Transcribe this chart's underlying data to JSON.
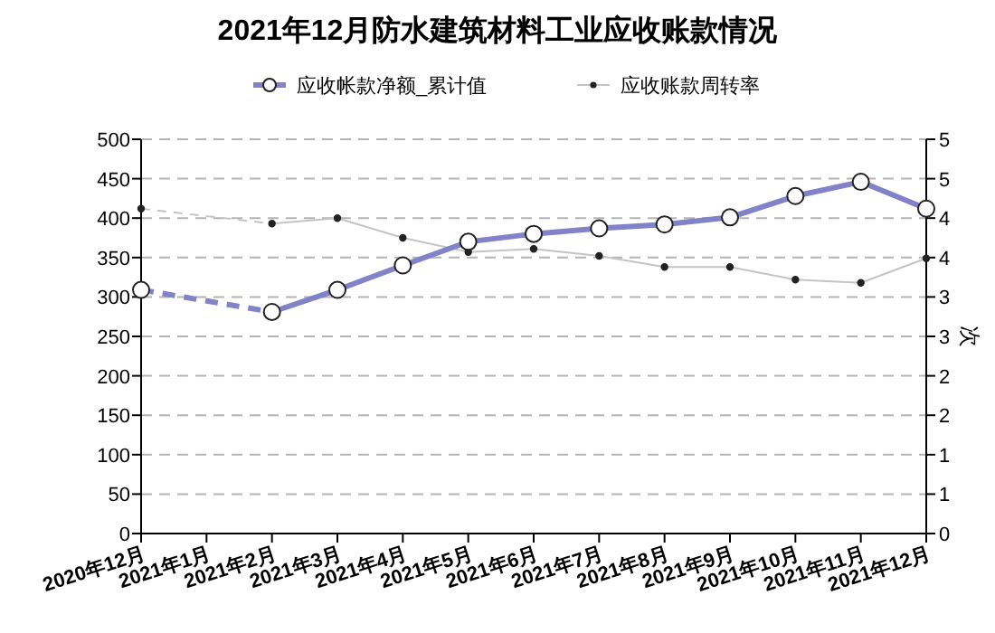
{
  "chart_data": {
    "type": "line",
    "title": "2021年12月防水建筑材料工业应收账款情况",
    "y2label": "次",
    "categories": [
      "2020年12月",
      "2021年1月",
      "2021年2月",
      "2021年3月",
      "2021年4月",
      "2021年5月",
      "2021年6月",
      "2021年7月",
      "2021年8月",
      "2021年9月",
      "2021年10月",
      "2021年11月",
      "2021年12月"
    ],
    "series": [
      {
        "name": "应收帐款净额_累计值",
        "color": "#8282c8",
        "marker": "circle",
        "values": [
          309,
          null,
          281,
          309,
          340,
          370,
          380,
          387,
          392,
          401,
          428,
          446,
          412
        ]
      },
      {
        "name": "应收账款周转率",
        "color": "#c4c4c4",
        "marker": "circle",
        "axis": "y2",
        "values": [
          4.12,
          null,
          3.93,
          4.0,
          3.75,
          3.57,
          3.61,
          3.52,
          3.38,
          3.38,
          3.22,
          3.18,
          3.49
        ]
      }
    ],
    "ylim": [
      0,
      500
    ],
    "yticks": [
      0,
      50,
      100,
      150,
      200,
      250,
      300,
      350,
      400,
      450,
      500
    ],
    "y2lim": [
      0,
      5
    ],
    "y2ticks": [
      0,
      {
        "value": 0.5,
        "label": "1"
      },
      1,
      {
        "value": 1.5,
        "label": "2"
      },
      2,
      {
        "value": 2.5,
        "label": "3"
      },
      3,
      {
        "value": 3.5,
        "label": "4"
      },
      4,
      {
        "value": 4.5,
        "label": "5"
      },
      5
    ],
    "grid": "y",
    "legend": "top",
    "line_style": "solid"
  }
}
